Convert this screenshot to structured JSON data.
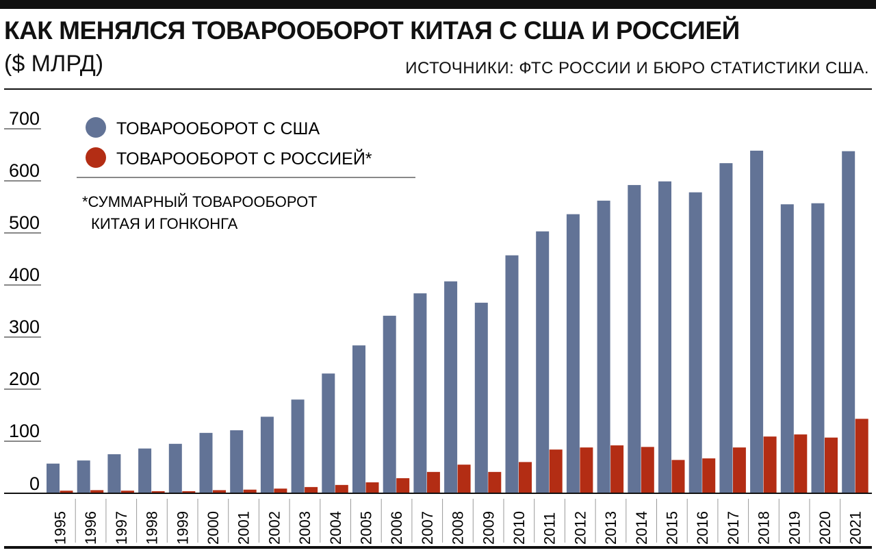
{
  "header": {
    "title": "КАК МЕНЯЛСЯ ТОВАРООБОРОТ КИТАЯ С США И РОССИЕЙ",
    "unit": "($ МЛРД)",
    "source": "ИСТОЧНИКИ: ФТС РОССИИ И БЮРО СТАТИСТИКИ США."
  },
  "chart_data": {
    "type": "bar",
    "title": "КАК МЕНЯЛСЯ ТОВАРООБОРОТ КИТАЯ С США И РОССИЕЙ",
    "ylabel": "($ МЛРД)",
    "xlabel": "",
    "ylim": [
      0,
      700
    ],
    "yticks": [
      "0",
      "100",
      "200",
      "300",
      "400",
      "500",
      "600",
      "700"
    ],
    "grid": false,
    "legend_position": "top-left",
    "categories": [
      "1995",
      "1996",
      "1997",
      "1998",
      "1999",
      "2000",
      "2001",
      "2002",
      "2003",
      "2004",
      "2005",
      "2006",
      "2007",
      "2008",
      "2009",
      "2010",
      "2011",
      "2012",
      "2013",
      "2014",
      "2015",
      "2016",
      "2017",
      "2018",
      "2019",
      "2020",
      "2021"
    ],
    "series": [
      {
        "name": "ТОВАРООБОРОТ С США",
        "color": "#627396",
        "values": [
          57,
          63,
          75,
          86,
          95,
          116,
          121,
          147,
          180,
          230,
          284,
          341,
          384,
          407,
          366,
          457,
          503,
          536,
          562,
          592,
          599,
          578,
          634,
          658,
          555,
          557,
          657
        ]
      },
      {
        "name": "ТОВАРООБОРОТ С РОССИЕЙ*",
        "color": "#b32d14",
        "values": [
          5,
          6,
          5,
          4,
          4,
          6,
          7,
          9,
          12,
          16,
          21,
          29,
          41,
          55,
          41,
          60,
          84,
          88,
          92,
          89,
          64,
          67,
          88,
          109,
          113,
          107,
          143
        ]
      }
    ],
    "footnote_line1": "*СУММАРНЫЙ ТОВАРООБОРОТ",
    "footnote_line2": "КИТАЯ И ГОНКОНГА"
  }
}
